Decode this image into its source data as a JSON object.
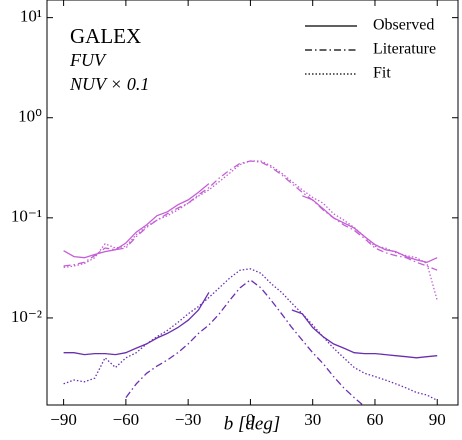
{
  "chart_data": {
    "type": "line",
    "x_label": "b [deg]",
    "log_y": true,
    "xlim": [
      -98,
      100
    ],
    "ylim": [
      0.00135,
      15
    ],
    "xticks": [
      {
        "value": -90,
        "label": "−90"
      },
      {
        "value": -60,
        "label": "−60"
      },
      {
        "value": -30,
        "label": "−30"
      },
      0,
      30,
      60,
      90
    ],
    "yticks": [
      {
        "value": 0.01,
        "label": "10⁻²"
      },
      {
        "value": 0.1,
        "label": "10⁻¹"
      },
      {
        "value": 1,
        "label": "10⁰"
      },
      {
        "value": 10,
        "label": "10¹"
      }
    ],
    "annotations": [
      {
        "text": "GALEX",
        "color": "#000000"
      },
      {
        "text": "FUV",
        "color": "#c45fd6"
      },
      {
        "text": "NUV × 0.1",
        "color": "#6a2fb0"
      }
    ],
    "legend_position": "upper right",
    "legend": [
      {
        "label": "Observed",
        "style": "solid"
      },
      {
        "label": "Literature",
        "style": "dashdot"
      },
      {
        "label": "Fit",
        "style": "dotted"
      }
    ],
    "x": [
      -90,
      -85,
      -80,
      -75,
      -70,
      -65,
      -60,
      -55,
      -50,
      -45,
      -40,
      -35,
      -30,
      -25,
      -20,
      -15,
      -10,
      -5,
      0,
      5,
      10,
      15,
      20,
      25,
      30,
      35,
      40,
      45,
      50,
      55,
      60,
      65,
      70,
      75,
      80,
      85,
      90
    ],
    "series": [
      {
        "name": "FUV",
        "style": "solid",
        "color": "#c45fd6",
        "values": [
          0.047,
          0.041,
          0.04,
          0.043,
          0.046,
          0.048,
          0.056,
          0.072,
          0.085,
          0.105,
          0.115,
          0.135,
          0.151,
          0.18,
          0.22,
          null,
          null,
          null,
          null,
          null,
          null,
          null,
          null,
          0.166,
          0.151,
          0.123,
          0.1,
          0.089,
          0.079,
          0.065,
          0.054,
          0.048,
          0.046,
          0.041,
          0.038,
          0.036,
          0.04
        ]
      },
      {
        "name": "FUV",
        "style": "dashdot",
        "color": "#c45fd6",
        "values": [
          0.033,
          0.034,
          0.036,
          0.042,
          0.05,
          0.048,
          0.05,
          0.065,
          0.08,
          0.095,
          0.11,
          0.125,
          0.14,
          0.17,
          0.2,
          0.25,
          0.3,
          0.35,
          0.37,
          0.36,
          0.32,
          0.27,
          0.22,
          0.18,
          0.15,
          0.12,
          0.1,
          0.085,
          0.075,
          0.062,
          0.05,
          0.045,
          0.042,
          0.04,
          0.036,
          0.033,
          0.03
        ]
      },
      {
        "name": "FUV",
        "style": "dotted",
        "color": "#c45fd6",
        "values": [
          0.032,
          0.033,
          0.035,
          0.04,
          0.055,
          0.05,
          0.052,
          0.068,
          0.082,
          0.095,
          0.105,
          0.12,
          0.14,
          0.165,
          0.19,
          0.23,
          0.28,
          0.34,
          0.37,
          0.37,
          0.33,
          0.28,
          0.23,
          0.19,
          0.16,
          0.14,
          0.11,
          0.095,
          0.08,
          0.065,
          0.052,
          0.05,
          0.045,
          0.042,
          0.04,
          0.035,
          0.015
        ]
      },
      {
        "name": "NUV × 0.1",
        "style": "solid",
        "color": "#6a2fb0",
        "values": [
          0.0045,
          0.0045,
          0.0043,
          0.0044,
          0.0044,
          0.0043,
          0.0045,
          0.005,
          0.0055,
          0.0063,
          0.007,
          0.008,
          0.0095,
          0.012,
          0.018,
          null,
          null,
          null,
          null,
          null,
          null,
          null,
          0.012,
          0.011,
          0.008,
          0.0065,
          0.0055,
          0.005,
          0.0045,
          0.0044,
          0.0044,
          0.0043,
          0.0042,
          0.0041,
          0.004,
          0.0041,
          0.0042
        ]
      },
      {
        "name": "NUV × 0.1",
        "style": "dashdot",
        "color": "#6a2fb0",
        "values": [
          null,
          null,
          null,
          null,
          null,
          null,
          0.0016,
          0.0022,
          0.0028,
          0.0033,
          0.0038,
          0.0045,
          0.0055,
          0.007,
          0.0085,
          0.011,
          0.015,
          0.02,
          0.024,
          0.02,
          0.015,
          0.011,
          0.008,
          0.006,
          0.0045,
          0.0035,
          0.0026,
          0.002,
          0.0016,
          0.0013,
          null,
          null,
          null,
          null,
          null,
          null,
          null
        ]
      },
      {
        "name": "NUV × 0.1",
        "style": "dotted",
        "color": "#6a2fb0",
        "values": [
          0.0022,
          0.0024,
          0.0023,
          0.0025,
          0.004,
          0.0032,
          0.004,
          0.0045,
          0.0055,
          0.0065,
          0.0075,
          0.009,
          0.011,
          0.013,
          0.016,
          0.02,
          0.025,
          0.03,
          0.031,
          0.028,
          0.022,
          0.018,
          0.014,
          0.011,
          0.0085,
          0.0065,
          0.005,
          0.004,
          0.0032,
          0.0028,
          0.0026,
          0.0024,
          0.0022,
          0.002,
          0.0018,
          0.0017,
          0.0015
        ]
      }
    ]
  }
}
